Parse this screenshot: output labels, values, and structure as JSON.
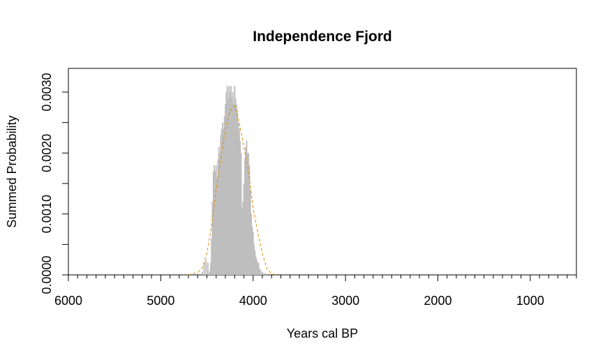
{
  "chart_data": {
    "type": "area",
    "title": "Independence Fjord",
    "xlabel": "Years cal BP",
    "ylabel": "Summed Probability",
    "xlim": [
      6000,
      500
    ],
    "ylim": [
      0,
      0.003
    ],
    "x_ticks_major": [
      6000,
      5000,
      4000,
      3000,
      2000,
      1000
    ],
    "x_tick_labels": [
      "6000",
      "5000",
      "4000",
      "3000",
      "2000",
      "1000"
    ],
    "x_ticks_minor_step": 100,
    "y_ticks": [
      0,
      0.0005,
      0.001,
      0.0015,
      0.002,
      0.0025,
      0.003
    ],
    "y_tick_labels": [
      "0.0000",
      "",
      "0.0010",
      "",
      "0.0020",
      "",
      "0.0030"
    ],
    "grid": false,
    "legend": "none",
    "series": [
      {
        "style": "filled-bars",
        "color": "#bebebe",
        "x": [
          4550,
          4530,
          4510,
          4490,
          4470,
          4460,
          4450,
          4440,
          4430,
          4420,
          4410,
          4400,
          4390,
          4380,
          4370,
          4360,
          4350,
          4340,
          4330,
          4320,
          4310,
          4300,
          4290,
          4280,
          4270,
          4260,
          4250,
          4240,
          4230,
          4220,
          4210,
          4200,
          4190,
          4180,
          4170,
          4160,
          4150,
          4140,
          4130,
          4120,
          4110,
          4100,
          4090,
          4080,
          4070,
          4060,
          4050,
          4040,
          4030,
          4020,
          4010,
          4000,
          3990,
          3980,
          3970,
          3960,
          3950,
          3940,
          3930,
          3920,
          3900,
          3880,
          3860,
          3840
        ],
        "y": [
          5e-05,
          0.0002,
          0.00025,
          0.0002,
          6e-05,
          0.0002,
          0.0006,
          0.0012,
          0.0017,
          0.0018,
          0.0017,
          0.0018,
          0.0016,
          0.0019,
          0.0021,
          0.002,
          0.0023,
          0.0024,
          0.0025,
          0.0024,
          0.0026,
          0.0028,
          0.003,
          0.0031,
          0.0029,
          0.0031,
          0.003,
          0.0031,
          0.0029,
          0.003,
          0.0028,
          0.0031,
          0.0029,
          0.0028,
          0.0027,
          0.0025,
          0.0024,
          0.0022,
          0.002,
          0.0011,
          0.0012,
          0.0015,
          0.0019,
          0.0021,
          0.0022,
          0.002,
          0.002,
          0.0018,
          0.0014,
          0.001,
          0.0008,
          0.0007,
          0.0005,
          0.0004,
          0.0003,
          0.00025,
          0.0002,
          0.0002,
          0.0001,
          8e-05,
          5e-05,
          3e-05,
          2e-05,
          0.0
        ]
      },
      {
        "style": "dashed-line",
        "color": "#e08a00",
        "x": [
          4700,
          4600,
          4550,
          4500,
          4450,
          4400,
          4350,
          4300,
          4250,
          4200,
          4150,
          4100,
          4050,
          4000,
          3950,
          3900,
          3850,
          3800,
          3750
        ],
        "y": [
          0.0,
          4e-05,
          0.00012,
          0.00035,
          0.0008,
          0.0014,
          0.0019,
          0.0024,
          0.0027,
          0.00277,
          0.0025,
          0.0021,
          0.0017,
          0.0011,
          0.0007,
          0.00035,
          0.0001,
          2e-05,
          0.0
        ]
      }
    ]
  }
}
